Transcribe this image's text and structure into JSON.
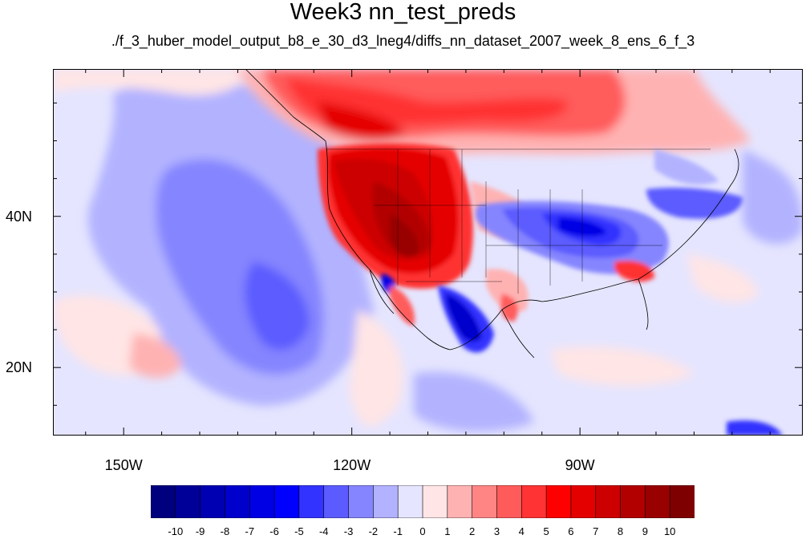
{
  "title": "Week3 nn_test_preds",
  "subtitle": "./f_3_huber_model_output_b8_e_30_d3_lneg4/diffs_nn_dataset_2007_week_8_ens_6_f_3",
  "axes": {
    "x_ticks": [
      {
        "value": -150,
        "label": "150W"
      },
      {
        "value": -120,
        "label": "120W"
      },
      {
        "value": -90,
        "label": "90W"
      }
    ],
    "y_ticks": [
      {
        "value": 40,
        "label": "40N"
      },
      {
        "value": 20,
        "label": "20N"
      }
    ]
  },
  "colorbar": {
    "colors": [
      "#00007f",
      "#000099",
      "#0000b2",
      "#0000cc",
      "#0000e5",
      "#0000ff",
      "#3333ff",
      "#5b5bff",
      "#8585ff",
      "#b2b2ff",
      "#e5e5ff",
      "#ffe5e5",
      "#ffb2b2",
      "#ff8585",
      "#ff5b5b",
      "#ff3333",
      "#ff0000",
      "#e50000",
      "#cc0000",
      "#b20000",
      "#990000",
      "#7f0000"
    ],
    "labels": [
      "-10",
      "-9",
      "-8",
      "-7",
      "-6",
      "-5",
      "-4",
      "-3",
      "-2",
      "-1",
      "0",
      "1",
      "2",
      "3",
      "4",
      "5",
      "6",
      "7",
      "8",
      "9",
      "10"
    ]
  }
}
